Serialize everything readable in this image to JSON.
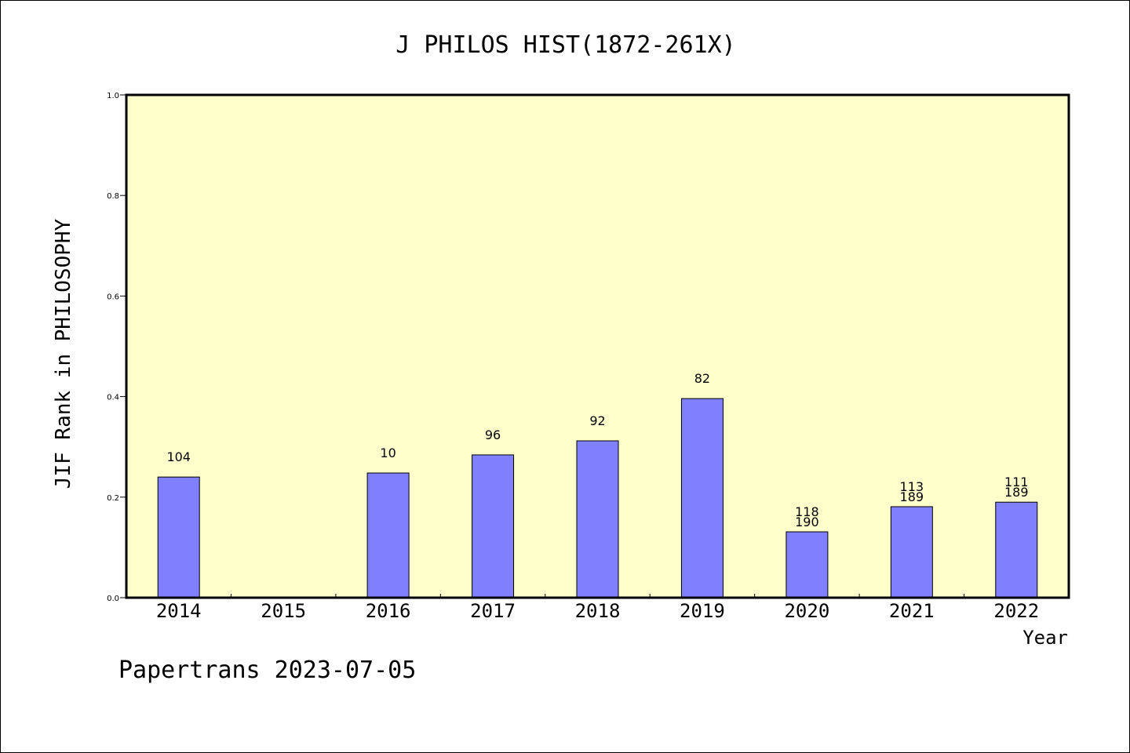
{
  "chart_data": {
    "type": "bar",
    "title": "J PHILOS HIST(1872-261X)",
    "xlabel": "Year",
    "ylabel": "JIF Rank in PHILOSOPHY",
    "ylim": [
      0,
      1.0
    ],
    "yticks": [
      "0.0",
      "0.2",
      "0.4",
      "0.6",
      "0.8",
      "1.0"
    ],
    "grid": false,
    "background_color": "#ffffcc",
    "bar_color": "#8080ff",
    "categories": [
      "2014",
      "2015",
      "2016",
      "2017",
      "2018",
      "2019",
      "2020",
      "2021",
      "2022"
    ],
    "values": [
      0.24,
      null,
      0.248,
      0.284,
      0.312,
      0.396,
      0.131,
      0.181,
      0.19
    ],
    "labels": [
      [
        "104"
      ],
      [],
      [
        "10"
      ],
      [
        "96"
      ],
      [
        "92"
      ],
      [
        "82"
      ],
      [
        "118",
        "190"
      ],
      [
        "113",
        "189"
      ],
      [
        "111",
        "189"
      ]
    ]
  },
  "footer": "Papertrans 2023-07-05"
}
